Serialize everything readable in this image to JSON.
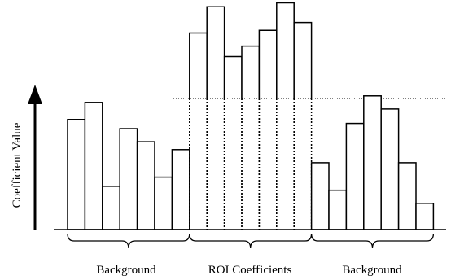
{
  "y_axis_label": "Coefficient Value",
  "regions": [
    {
      "label": "Background",
      "style": "solid",
      "bars": [
        0.84,
        0.97,
        0.33,
        0.77,
        0.67,
        0.4,
        0.61
      ]
    },
    {
      "label": "ROI Coefficients",
      "style": "dotted",
      "bars": [
        1.5,
        1.7,
        1.32,
        1.4,
        1.52,
        1.73,
        1.58
      ]
    },
    {
      "label": "Background",
      "style": "solid",
      "bars": [
        0.51,
        0.3,
        0.81,
        1.02,
        0.92,
        0.51,
        0.2
      ]
    }
  ],
  "threshold": 1.0,
  "colors": {
    "stroke": "#000000",
    "fill": "#ffffff"
  }
}
